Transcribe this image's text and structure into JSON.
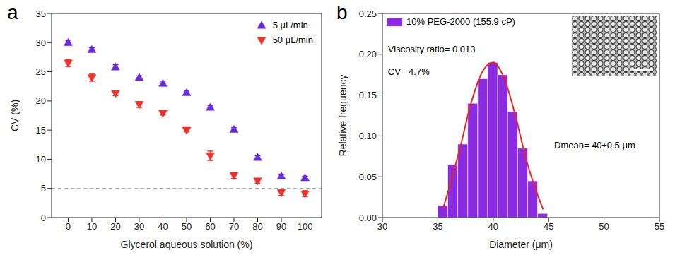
{
  "chart_data": [
    {
      "type": "scatter",
      "label": "a",
      "x_label": "Glycerol aqueous solution (%)",
      "y_label": "CV (%)",
      "x": [
        0,
        10,
        20,
        30,
        40,
        50,
        60,
        70,
        80,
        90,
        100
      ],
      "series": [
        {
          "name": "5 μL/min",
          "color": "#6a2bd9",
          "marker": "triangle-up",
          "values": [
            30,
            28.8,
            25.8,
            24,
            23,
            21.4,
            18.9,
            15.1,
            10.3,
            7.1,
            6.8
          ],
          "errors": [
            0.4,
            0.3,
            0.4,
            0.3,
            0.4,
            0.3,
            0.3,
            0.3,
            0.3,
            0.3,
            0.3
          ]
        },
        {
          "name": "50 μL/min",
          "color": "#e8352e",
          "marker": "triangle-down",
          "values": [
            26.5,
            24,
            21.3,
            19.4,
            17.9,
            15,
            10.6,
            7.2,
            6.3,
            4.3,
            4.1
          ],
          "errors": [
            0.6,
            0.6,
            0.4,
            0.5,
            0.3,
            0.3,
            0.8,
            0.5,
            0.4,
            0.5,
            0.5
          ]
        }
      ],
      "hline": {
        "y": 5,
        "line_style": "dashed",
        "color": "#999999"
      },
      "xlim": [
        -7,
        107
      ],
      "xticks": [
        0,
        10,
        20,
        30,
        40,
        50,
        60,
        70,
        80,
        90,
        100
      ],
      "ylim": [
        0,
        35
      ],
      "yticks": [
        0,
        5,
        10,
        15,
        20,
        25,
        30,
        35
      ],
      "legend": "upper right"
    },
    {
      "type": "histogram",
      "label": "b",
      "x_label": "Diameter (μm)",
      "y_label": "Relative frequency",
      "name": "10% PEG-2000 (155.9 cP)",
      "color": "#8a2be2",
      "bins": [
        35.0,
        35.9,
        36.8,
        37.7,
        38.6,
        39.5,
        40.4,
        41.3,
        42.2,
        43.1,
        44.0,
        44.9
      ],
      "counts": [
        0.015,
        0.065,
        0.09,
        0.14,
        0.17,
        0.19,
        0.175,
        0.13,
        0.085,
        0.045,
        0.005
      ],
      "fit": {
        "color": "#e8271f",
        "x": [
          35.5,
          36,
          37,
          38,
          39,
          40,
          41,
          42,
          43,
          44,
          44.5
        ],
        "y": [
          0.012,
          0.035,
          0.085,
          0.14,
          0.178,
          0.19,
          0.17,
          0.125,
          0.07,
          0.028,
          0.01
        ]
      },
      "annotations": [
        "Viscosity ratio= 0.013",
        "CV= 4.7%",
        "Dmean= 40±0.5 μm"
      ],
      "xlim": [
        30,
        55
      ],
      "xticks": [
        30,
        35,
        40,
        45,
        50,
        55
      ],
      "ylim": [
        0,
        0.25
      ],
      "yticks": [
        {
          "value": 0,
          "label": "0.00"
        },
        {
          "value": 0.05,
          "label": "0.05"
        },
        {
          "value": 0.1,
          "label": "0.10"
        },
        {
          "value": 0.15,
          "label": "0.15"
        },
        {
          "value": 0.2,
          "label": "0.20"
        },
        {
          "value": 0.25,
          "label": "0.25"
        }
      ],
      "legend": "upper left"
    }
  ]
}
